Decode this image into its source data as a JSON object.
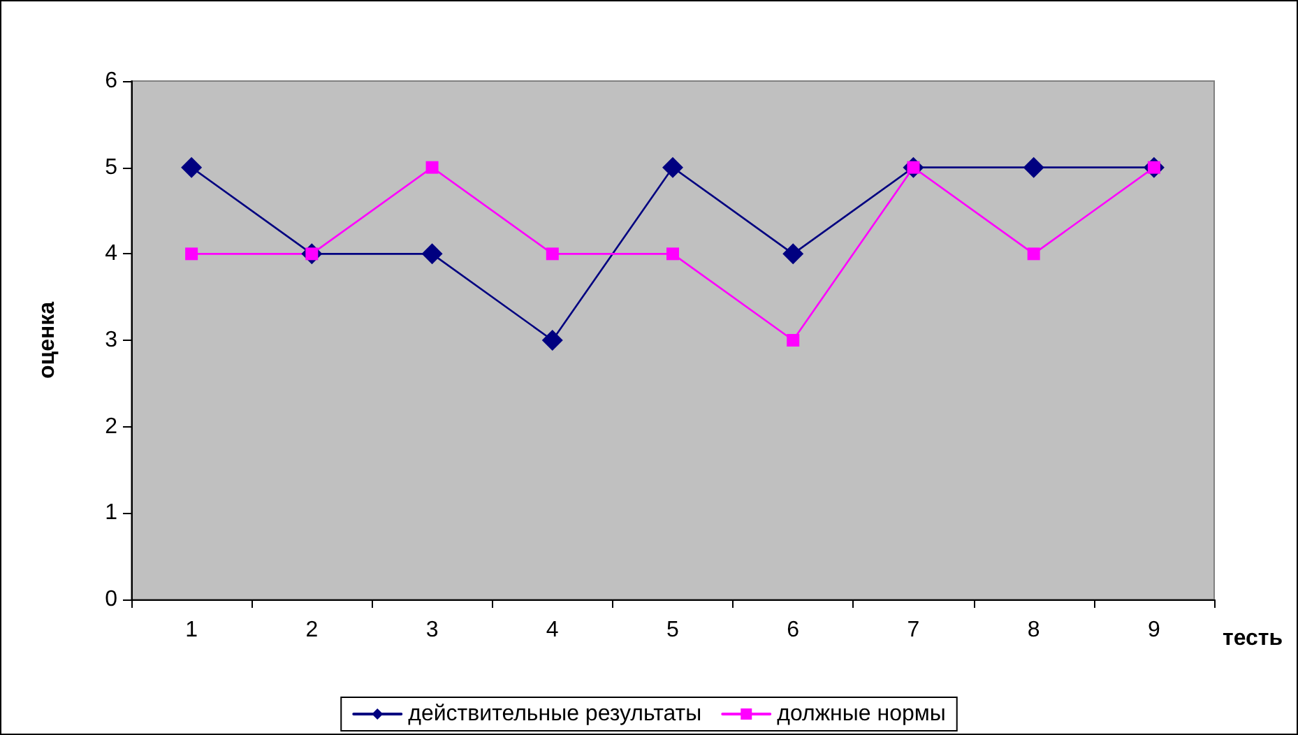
{
  "chart_data": {
    "type": "line",
    "xlabel": "тесть",
    "ylabel": "оценка",
    "categories": [
      "1",
      "2",
      "3",
      "4",
      "5",
      "6",
      "7",
      "8",
      "9"
    ],
    "series": [
      {
        "name": "действительные результаты",
        "color": "#000080",
        "marker": "diamond",
        "values": [
          5,
          4,
          4,
          3,
          5,
          4,
          5,
          5,
          5
        ]
      },
      {
        "name": "должные нормы",
        "color": "#ff00ff",
        "marker": "square",
        "values": [
          4,
          4,
          5,
          4,
          4,
          3,
          5,
          4,
          5
        ]
      }
    ],
    "ylim": [
      0,
      6
    ],
    "yticks": [
      0,
      1,
      2,
      3,
      4,
      5,
      6
    ],
    "grid": false,
    "legend": "bottom",
    "line_style": "solid"
  }
}
